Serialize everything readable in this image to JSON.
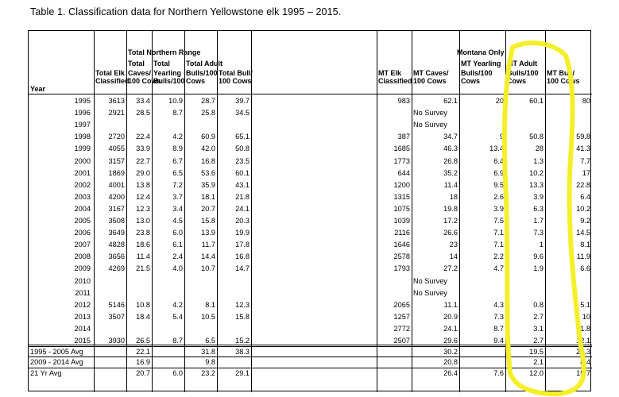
{
  "caption": "Table 1. Classification data for Northern Yellowstone elk 1995 – 2015.",
  "header": {
    "group_left": "Total Northern Range",
    "group_right": "Montana Only",
    "year": "Year",
    "columns": [
      [
        "",
        "",
        "Total Elk",
        "Classified"
      ],
      [
        "",
        "Total",
        "Caves/",
        "100 Cows"
      ],
      [
        "",
        "Total",
        "Yearling",
        "Bulls/100"
      ],
      [
        "",
        "Total Adult",
        "Bulls/100",
        "Cows"
      ],
      [
        "",
        "",
        "Total Bull/",
        "100 Cows"
      ],
      [
        "",
        "",
        "MT Elk",
        "Classified"
      ],
      [
        "",
        "",
        "MT Caves/",
        "100 Cows"
      ],
      [
        "",
        "MT Yearling",
        "Bulls/100",
        "Cows"
      ],
      [
        "",
        "MT Adult",
        "Bulls/100",
        "Cows"
      ],
      [
        "",
        "",
        "MT Bull/",
        "100 Cows"
      ]
    ]
  },
  "rows": [
    {
      "year": "1995",
      "c": [
        "3613",
        "33.4",
        "10.9",
        "28.7",
        "39.7",
        "983",
        "62.1",
        "20",
        "60.1",
        "80"
      ]
    },
    {
      "year": "1996",
      "c": [
        "2921",
        "28.5",
        "8.7",
        "25.8",
        "34.5",
        "",
        "No Survey",
        "",
        "",
        ""
      ]
    },
    {
      "year": "1997",
      "c": [
        "",
        "",
        "",
        "",
        "",
        "",
        "No Survey",
        "",
        "",
        ""
      ]
    },
    {
      "year": "1998",
      "c": [
        "2720",
        "22.4",
        "4.2",
        "60.9",
        "65.1",
        "387",
        "34.7",
        "9",
        "50.8",
        "59.8"
      ]
    },
    {
      "year": "1999",
      "c": [
        "4055",
        "33.9",
        "8.9",
        "42.0",
        "50.8",
        "1685",
        "46.3",
        "13.4",
        "28",
        "41.3"
      ]
    },
    {
      "year": "2000",
      "c": [
        "3157",
        "22.7",
        "6.7",
        "16.8",
        "23.5",
        "1773",
        "26.8",
        "6.4",
        "1.3",
        "7.7"
      ]
    },
    {
      "year": "2001",
      "c": [
        "1869",
        "29.0",
        "6.5",
        "53.6",
        "60.1",
        "644",
        "35.2",
        "6.9",
        "10.2",
        "17"
      ]
    },
    {
      "year": "2002",
      "c": [
        "4001",
        "13.8",
        "7.2",
        "35.9",
        "43.1",
        "1200",
        "11.4",
        "9.5",
        "13.3",
        "22.8"
      ]
    },
    {
      "year": "2003",
      "c": [
        "4200",
        "12.4",
        "3.7",
        "18.1",
        "21.8",
        "1315",
        "18",
        "2.6",
        "3.9",
        "6.4"
      ]
    },
    {
      "year": "2004",
      "c": [
        "3167",
        "12.3",
        "3.4",
        "20.7",
        "24.1",
        "1075",
        "19.8",
        "3.9",
        "6.3",
        "10.2"
      ]
    },
    {
      "year": "2005",
      "c": [
        "3508",
        "13.0",
        "4.5",
        "15.8",
        "20.3",
        "1039",
        "17.2",
        "7.5",
        "1.7",
        "9.2"
      ]
    },
    {
      "year": "2006",
      "c": [
        "3649",
        "23.8",
        "6.0",
        "13.9",
        "19.9",
        "2116",
        "26.6",
        "7.1",
        "7.3",
        "14.5"
      ]
    },
    {
      "year": "2007",
      "c": [
        "4828",
        "18.6",
        "6.1",
        "11.7",
        "17.8",
        "1646",
        "23",
        "7.1",
        "1",
        "8.1"
      ]
    },
    {
      "year": "2008",
      "c": [
        "3656",
        "11.4",
        "2.4",
        "14.4",
        "16.8",
        "2578",
        "14",
        "2.2",
        "9.6",
        "11.9"
      ]
    },
    {
      "year": "2009",
      "c": [
        "4269",
        "21.5",
        "4.0",
        "10.7",
        "14.7",
        "1793",
        "27.2",
        "4.7",
        "1.9",
        "6.6"
      ]
    },
    {
      "year": "2010",
      "c": [
        "",
        "",
        "",
        "",
        "",
        "",
        "No Survey",
        "",
        "",
        ""
      ]
    },
    {
      "year": "2011",
      "c": [
        "",
        "",
        "",
        "",
        "",
        "",
        "No Survey",
        "",
        "",
        ""
      ]
    },
    {
      "year": "2012",
      "c": [
        "5146",
        "10.8",
        "4.2",
        "8.1",
        "12.3",
        "2065",
        "11.1",
        "4.3",
        "0.8",
        "5.1"
      ]
    },
    {
      "year": "2013",
      "c": [
        "3507",
        "18.4",
        "5.4",
        "10.5",
        "15.8",
        "1257",
        "20.9",
        "7.3",
        "2.7",
        "10"
      ]
    },
    {
      "year": "2014",
      "c": [
        "",
        "",
        "",
        "",
        "",
        "2772",
        "24.1",
        "8.7",
        "3.1",
        "11.8"
      ]
    },
    {
      "year": "2015",
      "c": [
        "3930",
        "26.5",
        "8.7",
        "6.5",
        "15.2",
        "2507",
        "29.6",
        "9.4",
        "2.7",
        "12.1"
      ]
    }
  ],
  "summary": [
    {
      "label": "1995 - 2005 Avg",
      "c": [
        "",
        "22.1",
        "",
        "31.8",
        "38.3",
        "",
        "30.2",
        "",
        "19.5",
        "28.3"
      ]
    },
    {
      "label": "2009 - 2014 Avg",
      "c": [
        "",
        "16.9",
        "",
        "9.8",
        "",
        "",
        "20.8",
        "",
        "2.1",
        "8.4"
      ]
    },
    {
      "label": "21 Yr Avg",
      "c": [
        "",
        "20.7",
        "6.0",
        "23.2",
        "29.1",
        "",
        "26.4",
        "7.6",
        "12.0",
        "19.7"
      ]
    }
  ],
  "highlight_color": "#f5ef2a"
}
